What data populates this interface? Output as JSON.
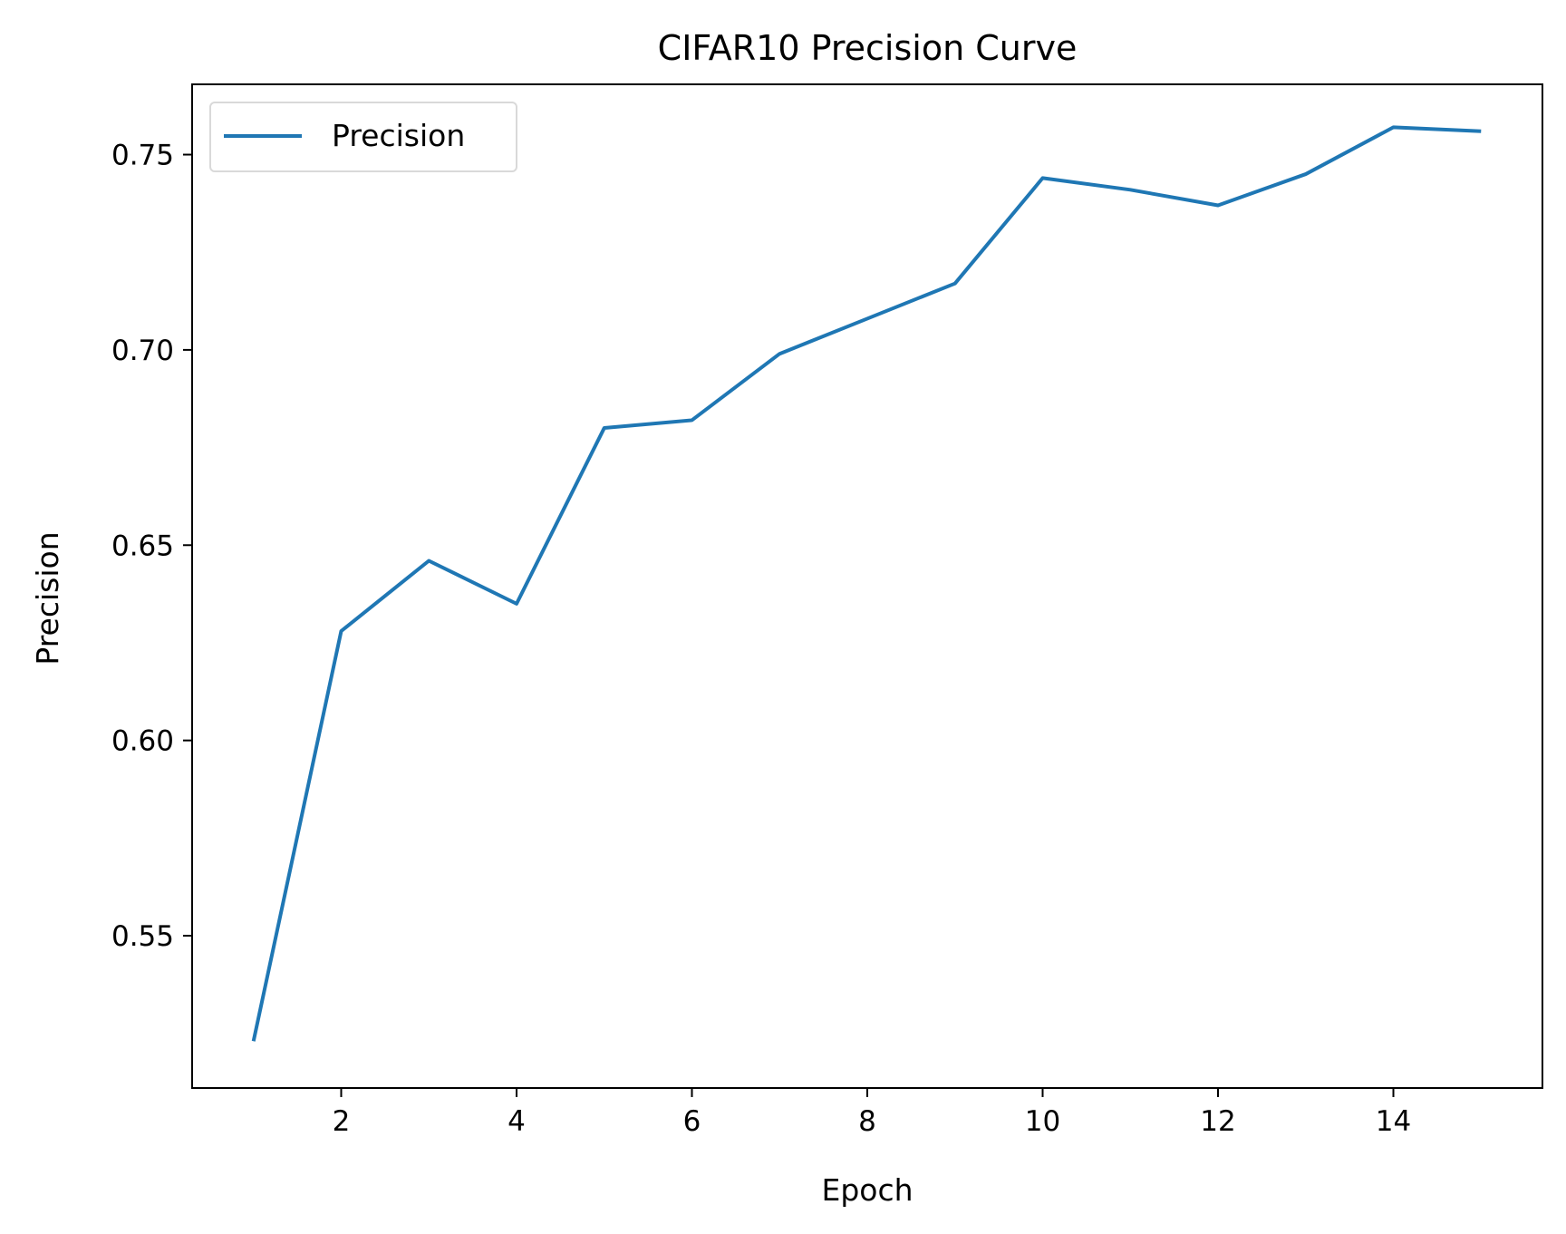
{
  "chart_data": {
    "type": "line",
    "title": "CIFAR10 Precision Curve",
    "xlabel": "Epoch",
    "ylabel": "Precision",
    "x": [
      1,
      2,
      3,
      4,
      5,
      6,
      7,
      8,
      9,
      10,
      11,
      12,
      13,
      14,
      15
    ],
    "series": [
      {
        "name": "Precision",
        "color": "#1f77b4",
        "values": [
          0.523,
          0.628,
          0.646,
          0.635,
          0.68,
          0.682,
          0.699,
          0.708,
          0.717,
          0.744,
          0.741,
          0.737,
          0.745,
          0.757,
          0.756
        ]
      }
    ],
    "xlim": [
      0.3,
      15.7
    ],
    "ylim": [
      0.511,
      0.768
    ],
    "xticks": [
      2,
      4,
      6,
      8,
      10,
      12,
      14
    ],
    "yticks": [
      0.55,
      0.6,
      0.65,
      0.7,
      0.75
    ],
    "xtick_labels": [
      "2",
      "4",
      "6",
      "8",
      "10",
      "12",
      "14"
    ],
    "ytick_labels": [
      "0.55",
      "0.60",
      "0.65",
      "0.70",
      "0.75"
    ],
    "grid": false,
    "legend": "top-left"
  }
}
